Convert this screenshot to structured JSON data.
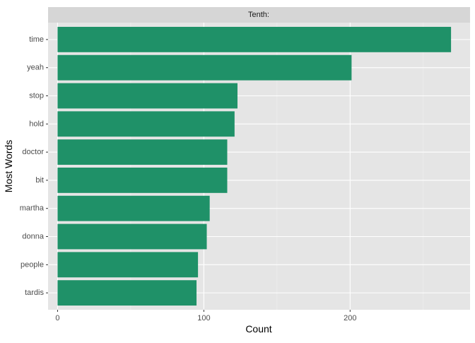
{
  "chart_data": {
    "type": "bar",
    "orientation": "horizontal",
    "facet_label": "Tenth:",
    "categories": [
      "time",
      "yeah",
      "stop",
      "hold",
      "doctor",
      "bit",
      "martha",
      "donna",
      "people",
      "tardis"
    ],
    "values": [
      269,
      201,
      123,
      121,
      116,
      116,
      104,
      102,
      96,
      95
    ],
    "xlabel": "Count",
    "ylabel": "Most Words",
    "xlim": [
      -6.5,
      282
    ],
    "xticks": [
      0,
      100,
      200
    ],
    "grid": true,
    "legend": "none",
    "colors": {
      "bar": "#1f9168",
      "panel": "#e5e5e5",
      "strip": "#d6d6d6",
      "grid_major": "#ffffff",
      "grid_minor": "#f0f0f0",
      "axis_text": "#4d4d4d",
      "title_text": "#1a1a1a"
    }
  }
}
